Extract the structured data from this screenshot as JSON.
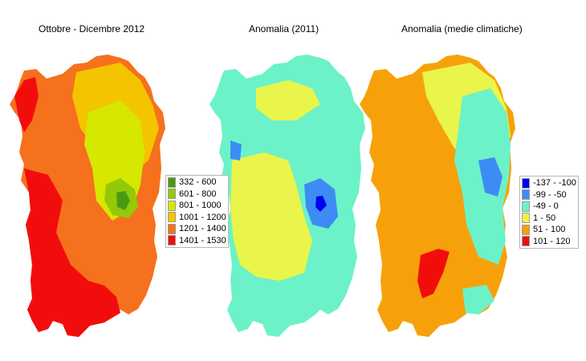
{
  "panels": [
    {
      "title": "Ottobre - Dicembre 2012",
      "legend": [
        {
          "label": "332 - 600",
          "color": "#4a9a12"
        },
        {
          "label": "601 - 800",
          "color": "#93c908"
        },
        {
          "label": "801 - 1000",
          "color": "#d6e800"
        },
        {
          "label": "1001 - 1200",
          "color": "#f5c400"
        },
        {
          "label": "1201 - 1400",
          "color": "#f5711d"
        },
        {
          "label": "1401 - 1530",
          "color": "#f20d0d"
        }
      ]
    },
    {
      "title": "Anomalia (2011)",
      "legend": []
    },
    {
      "title": "Anomalia (medie climatiche)",
      "legend": [
        {
          "label": "-137 - -100",
          "color": "#0000f0"
        },
        {
          "label": "-99 - -50",
          "color": "#3d8cf5"
        },
        {
          "label": "-49 - 0",
          "color": "#6cf2c8"
        },
        {
          "label": "1 - 50",
          "color": "#e9f54a"
        },
        {
          "label": "51 - 100",
          "color": "#f7a10a"
        },
        {
          "label": "101 - 120",
          "color": "#f20d0d"
        }
      ]
    }
  ]
}
